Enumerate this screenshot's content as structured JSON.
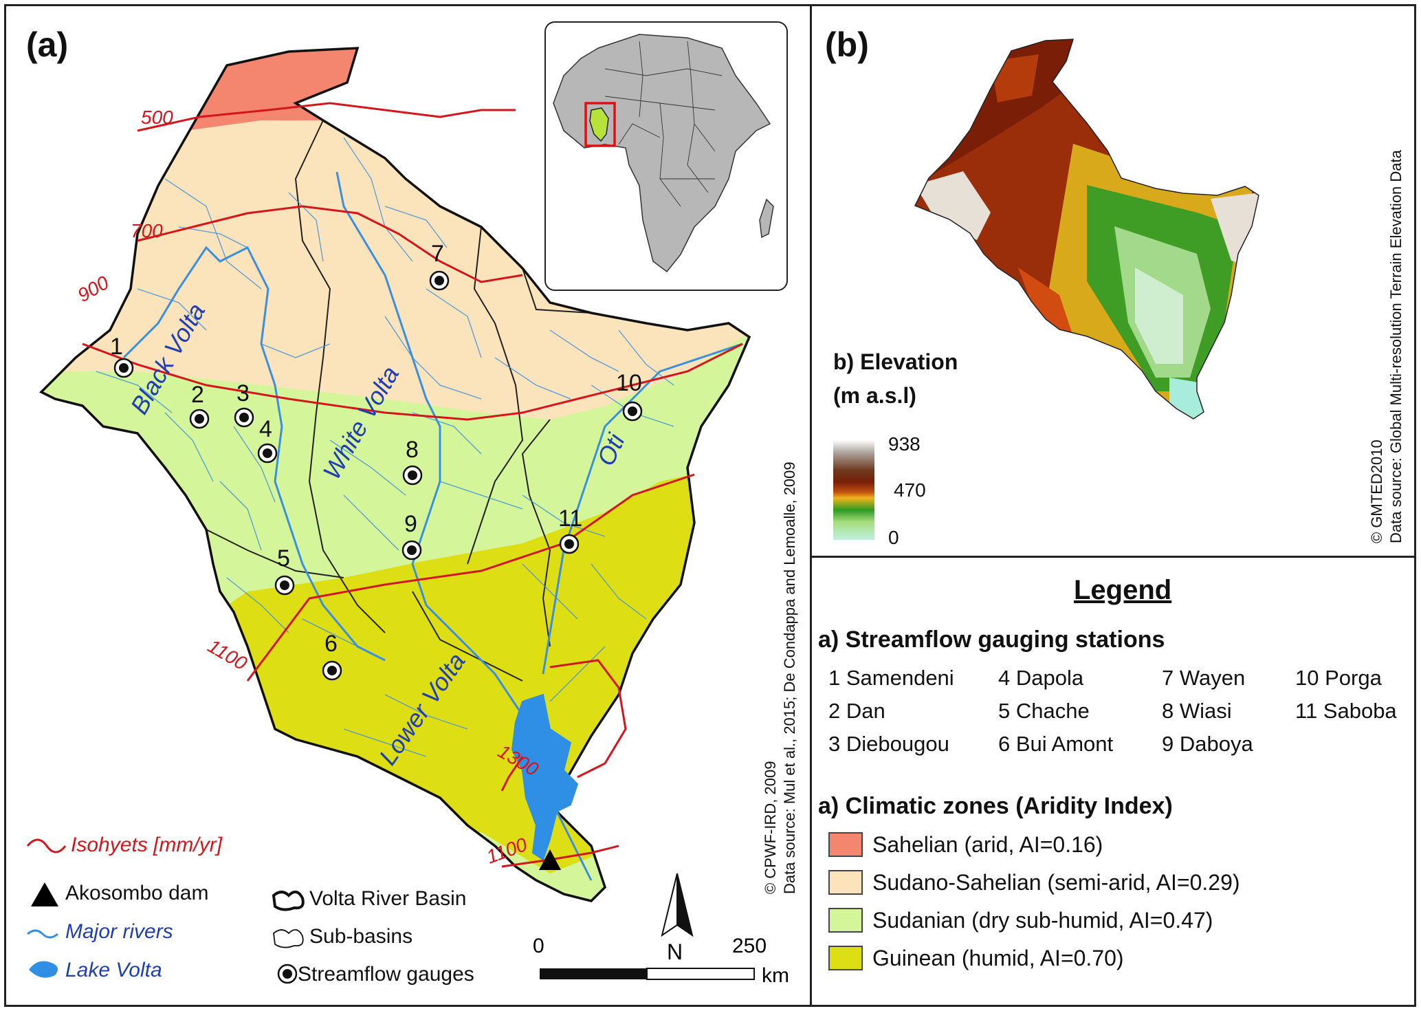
{
  "panel_a": {
    "label": "(a)",
    "river_labels": [
      "Black Volta",
      "White Volta",
      "Oti",
      "Lower Volta"
    ],
    "isohyets": [
      "500",
      "700",
      "900",
      "1100",
      "1100",
      "1300",
      "1100"
    ],
    "gauges": [
      "1",
      "2",
      "3",
      "4",
      "5",
      "6",
      "7",
      "8",
      "9",
      "10",
      "11"
    ],
    "north": "N",
    "scale": {
      "start": "0",
      "end": "250",
      "unit": "km"
    },
    "credit_1": "© CPWF-IRD, 2009",
    "credit_2": "Data source: Mul et al., 2015; De Condappa and Lemoalle, 2009"
  },
  "panel_b": {
    "label": "(b)",
    "elev_title_1": "b) Elevation",
    "elev_title_2": "(m a.s.l)",
    "elev_ticks": [
      "938",
      "470",
      "0"
    ],
    "credit_1": "© GMTED2010",
    "credit_2": "Data source: Global Multi-resolution Terrain Elevation Data"
  },
  "map_legend": {
    "isohyets": "Isohyets [mm/yr]",
    "dam": "Akosombo dam",
    "rivers": "Major rivers",
    "lake": "Lake Volta",
    "basin": "Volta River Basin",
    "subbasins": "Sub-basins",
    "gauges": "Streamflow gauges"
  },
  "legend": {
    "title": "Legend",
    "stations_heading": "a) Streamflow gauging stations",
    "stations": [
      "1 Samendeni",
      "2 Dan",
      "3 Diebougou",
      "4 Dapola",
      "5 Chache",
      "6 Bui Amont",
      "7 Wayen",
      "8 Wiasi",
      "9 Daboya",
      "10 Porga",
      "11 Saboba"
    ],
    "zones_heading": "a) Climatic zones (Aridity Index)",
    "zones": [
      {
        "label": "Sahelian (arid, AI=0.16)",
        "color": "#f4866f"
      },
      {
        "label": "Sudano-Sahelian (semi-arid, AI=0.29)",
        "color": "#fbe3bb"
      },
      {
        "label": "Sudanian (dry sub-humid, AI=0.47)",
        "color": "#d5f59a"
      },
      {
        "label": "Guinean (humid, AI=0.70)",
        "color": "#dede14"
      }
    ]
  },
  "colors": {
    "river": "#3a8fe0",
    "isohyet": "#d4161c",
    "river_label": "#1f3fb0"
  }
}
